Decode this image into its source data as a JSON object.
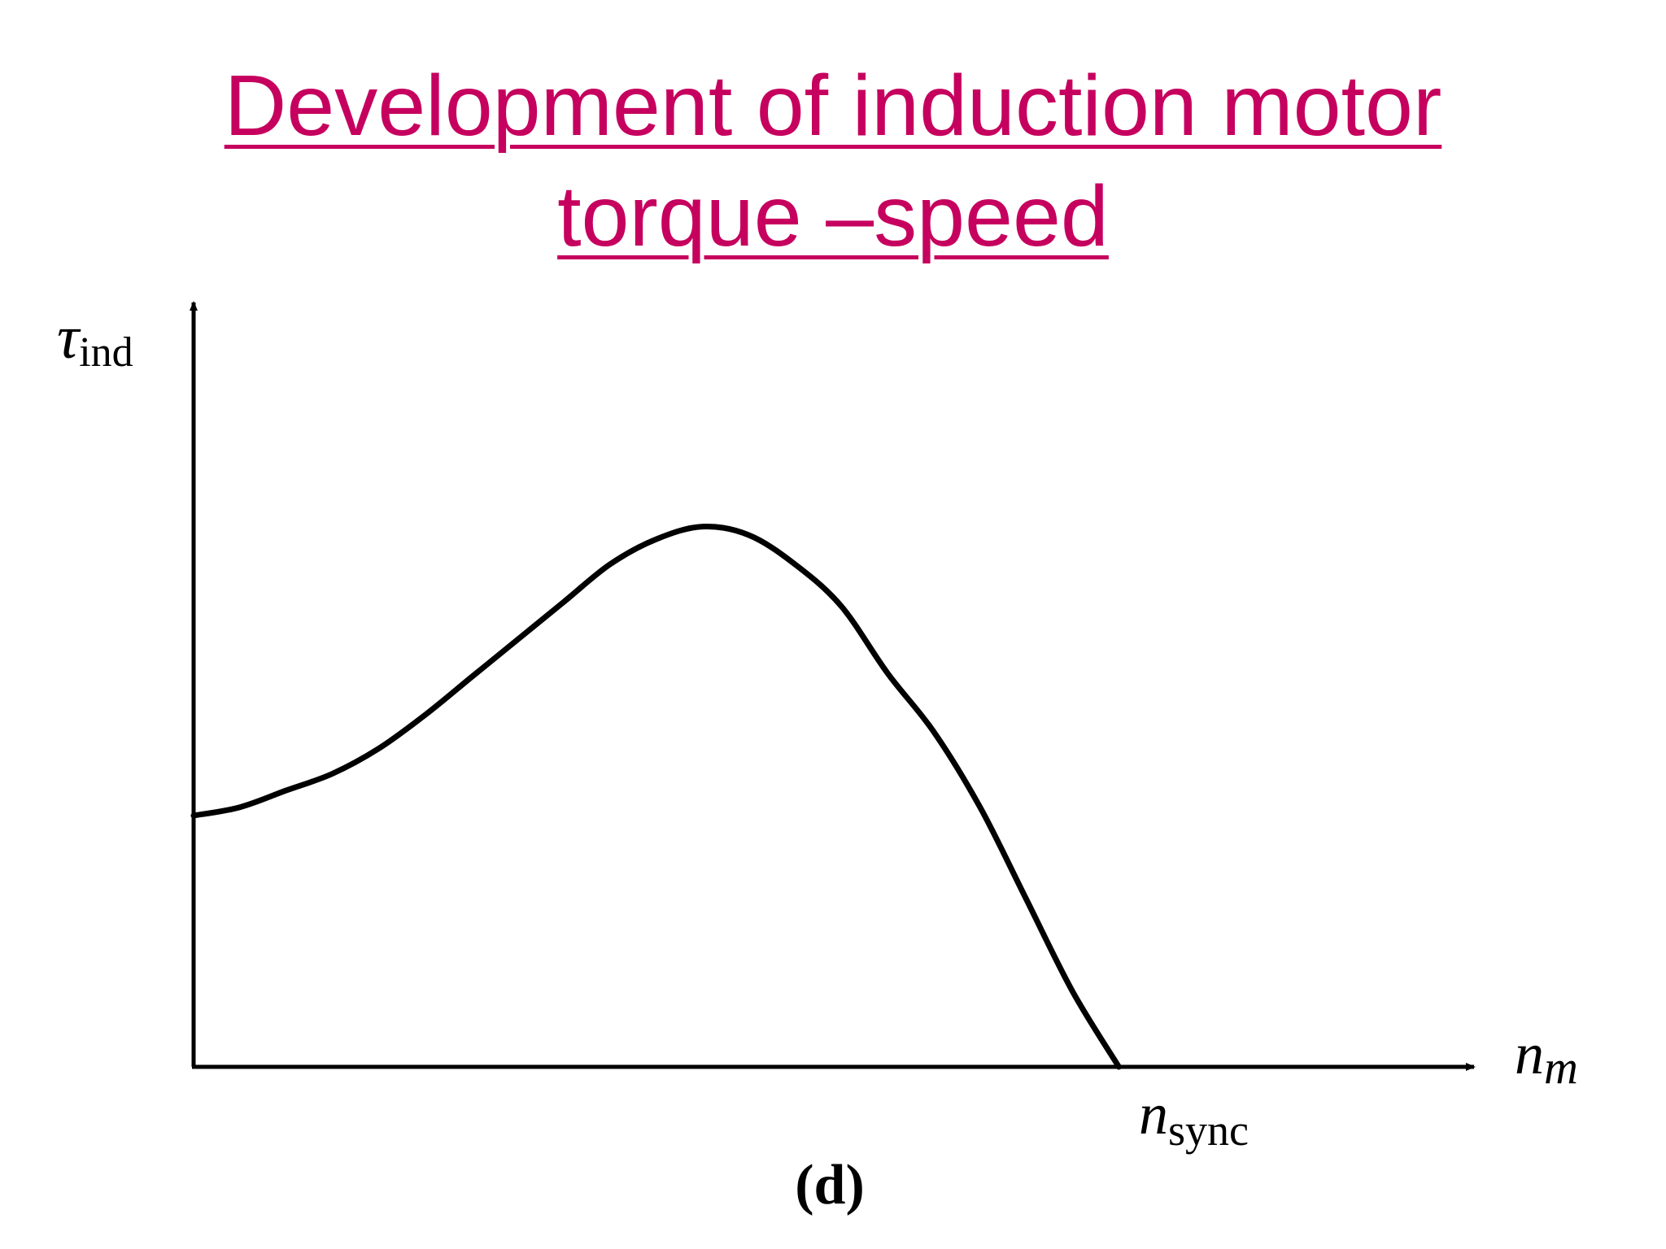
{
  "title": {
    "line1": "Development of induction motor",
    "line2": "torque –speed"
  },
  "colors": {
    "title": "#c6005e",
    "curve": "#000000",
    "axes": "#000000"
  },
  "chart_data": {
    "type": "line",
    "title": "",
    "ylabel": {
      "symbol": "τ",
      "subscript": "ind"
    },
    "xlabel": {
      "symbol": "n",
      "subscript": "m"
    },
    "x_tick": {
      "symbol": "n",
      "subscript": "sync",
      "value": 1.0
    },
    "caption": "(d)",
    "xlim": [
      0,
      1.31
    ],
    "ylim": [
      0,
      1.0
    ],
    "grid": false,
    "legend": "none",
    "series": [
      {
        "x": [
          0.0,
          0.05,
          0.1,
          0.15,
          0.2,
          0.25,
          0.3,
          0.35,
          0.4,
          0.45,
          0.5,
          0.55,
          0.6,
          0.65,
          0.7,
          0.75,
          0.8,
          0.85,
          0.9,
          0.95,
          1.0
        ],
        "y": [
          0.3,
          0.31,
          0.33,
          0.35,
          0.38,
          0.42,
          0.465,
          0.51,
          0.555,
          0.6,
          0.63,
          0.645,
          0.635,
          0.6,
          0.55,
          0.47,
          0.4,
          0.31,
          0.2,
          0.09,
          0.0
        ]
      }
    ]
  }
}
